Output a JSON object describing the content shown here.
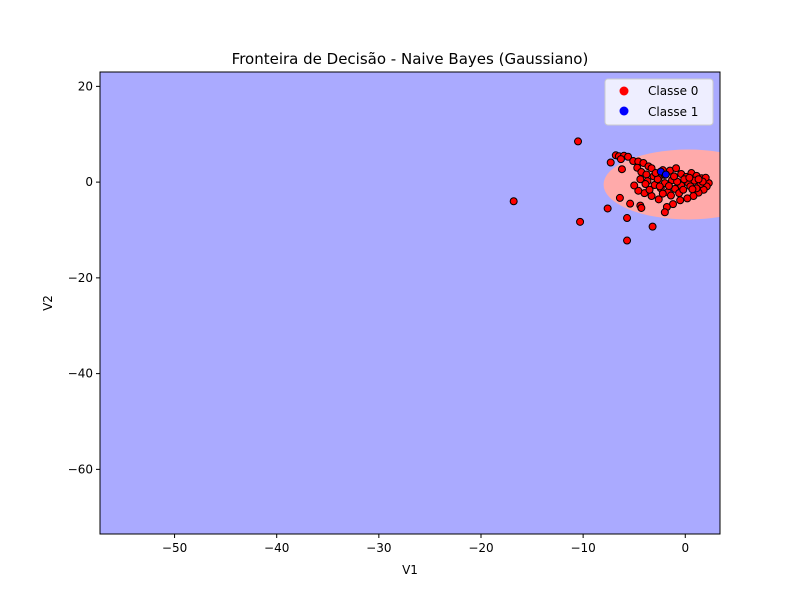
{
  "chart_data": {
    "type": "scatter",
    "title": "Fronteira de Decisão - Naive Bayes (Gaussiano)",
    "xlabel": "V1",
    "ylabel": "V2",
    "xlim": [
      -57.3,
      3.4
    ],
    "ylim": [
      -73.5,
      23.0
    ],
    "x_ticks": [
      -50,
      -40,
      -30,
      -20,
      -10,
      0
    ],
    "y_ticks": [
      -60,
      -40,
      -20,
      0,
      20
    ],
    "grid": false,
    "legend_position": "top-right",
    "colors": {
      "background_region": "#aaaaff",
      "class_0_region": "#ffaaaa",
      "class_0_point": "#ff0000",
      "class_1_point": "#0000ff",
      "point_edge": "#000000"
    },
    "decision_region_class_0": {
      "center": [
        0.3,
        -0.5
      ],
      "semi_axis_x": 8.3,
      "semi_axis_y": 7.3
    },
    "series": [
      {
        "name": "Classe 0",
        "points": [
          [
            -10.5,
            8.5
          ],
          [
            -16.8,
            -4.0
          ],
          [
            -10.3,
            -8.3
          ],
          [
            -7.6,
            -5.5
          ],
          [
            -5.7,
            -12.2
          ],
          [
            -5.7,
            -7.5
          ],
          [
            -3.2,
            -9.3
          ],
          [
            -5.4,
            -4.5
          ],
          [
            -4.4,
            -4.9
          ],
          [
            -4.3,
            -5.4
          ],
          [
            -6.4,
            -3.3
          ],
          [
            -7.3,
            4.1
          ],
          [
            -6.8,
            5.6
          ],
          [
            -6.5,
            5.4
          ],
          [
            -6.0,
            5.5
          ],
          [
            -5.6,
            5.3
          ],
          [
            -6.3,
            4.8
          ],
          [
            -5.1,
            4.4
          ],
          [
            -4.6,
            4.3
          ],
          [
            -4.1,
            4.0
          ],
          [
            -3.6,
            3.3
          ],
          [
            -3.3,
            2.9
          ],
          [
            -4.7,
            3.0
          ],
          [
            -6.2,
            2.7
          ],
          [
            -4.3,
            2.1
          ],
          [
            -3.8,
            1.6
          ],
          [
            -3.1,
            1.2
          ],
          [
            -2.6,
            0.9
          ],
          [
            -2.0,
            1.5
          ],
          [
            -1.5,
            2.4
          ],
          [
            -0.9,
            2.9
          ],
          [
            -0.4,
            1.7
          ],
          [
            0.1,
            1.1
          ],
          [
            0.6,
            1.9
          ],
          [
            1.1,
            1.3
          ],
          [
            1.6,
            0.8
          ],
          [
            2.0,
            0.4
          ],
          [
            2.3,
            -0.2
          ],
          [
            2.1,
            -0.9
          ],
          [
            1.8,
            -1.6
          ],
          [
            1.3,
            -2.2
          ],
          [
            0.8,
            -2.9
          ],
          [
            0.2,
            -3.4
          ],
          [
            -0.5,
            -3.8
          ],
          [
            -1.2,
            -4.6
          ],
          [
            -1.8,
            -5.2
          ],
          [
            -2.0,
            -6.3
          ],
          [
            -2.6,
            -3.6
          ],
          [
            -3.3,
            -2.9
          ],
          [
            -4.0,
            -2.3
          ],
          [
            -4.6,
            -1.8
          ],
          [
            -5.0,
            -0.7
          ],
          [
            -4.4,
            0.6
          ],
          [
            -3.7,
            0.2
          ],
          [
            -3.0,
            -0.6
          ],
          [
            -2.4,
            -1.3
          ],
          [
            -1.7,
            -2.1
          ],
          [
            -1.0,
            -1.4
          ],
          [
            -0.4,
            -0.7
          ],
          [
            0.3,
            -0.2
          ],
          [
            0.9,
            0.3
          ],
          [
            1.5,
            -0.4
          ],
          [
            2.0,
            0.9
          ],
          [
            -1.3,
            0.4
          ],
          [
            -2.0,
            -0.2
          ],
          [
            -2.7,
            0.6
          ],
          [
            -1.6,
            -0.8
          ],
          [
            -0.8,
            0.1
          ],
          [
            -0.1,
            0.6
          ],
          [
            0.5,
            -0.9
          ],
          [
            1.1,
            -1.3
          ],
          [
            1.7,
            0.1
          ],
          [
            -0.6,
            -2.3
          ],
          [
            -1.4,
            -2.8
          ],
          [
            -2.2,
            -2.4
          ],
          [
            -3.5,
            -1.6
          ],
          [
            -2.9,
            1.9
          ],
          [
            -2.2,
            2.5
          ],
          [
            -1.1,
            1.2
          ],
          [
            0.4,
            0.9
          ],
          [
            1.3,
            0.6
          ],
          [
            -0.2,
            -1.6
          ],
          [
            0.7,
            -1.5
          ],
          [
            -2.5,
            -0.9
          ],
          [
            -3.9,
            -0.4
          ]
        ]
      },
      {
        "name": "Classe 1",
        "points": [
          [
            -2.4,
            2.2
          ],
          [
            -1.9,
            1.6
          ]
        ]
      }
    ]
  }
}
